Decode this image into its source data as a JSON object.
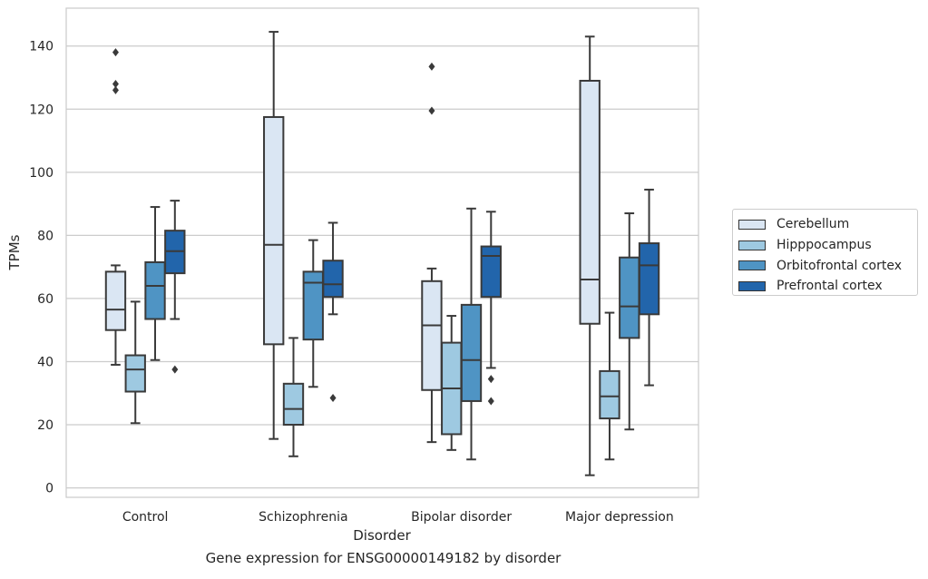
{
  "caption": "Gene expression for ENSG00000149182 by disorder",
  "colors": {
    "Cerebellum": "#dae6f3",
    "Hipppocampus": "#9ec9e1",
    "Orbitofrontal cortex": "#4f94c4",
    "Prefrontal cortex": "#2265ab",
    "line": "#3a3a3a",
    "grid": "#cccccc"
  },
  "chart_data": {
    "type": "box",
    "title": "",
    "xlabel": "Disorder",
    "ylabel": "TPMs",
    "ylim": [
      -3,
      152
    ],
    "yticks": [
      0,
      20,
      40,
      60,
      80,
      100,
      120,
      140
    ],
    "grid": "horizontal",
    "legend_position": "right",
    "categories": [
      "Control",
      "Schizophrenia",
      "Bipolar disorder",
      "Major depression"
    ],
    "series": [
      {
        "name": "Cerebellum",
        "boxes": [
          {
            "whislo": 39,
            "q1": 50,
            "med": 56.5,
            "q3": 68.5,
            "whishi": 70.5,
            "fliers": [
              126,
              128,
              138
            ]
          },
          {
            "whislo": 15.5,
            "q1": 45.5,
            "med": 77,
            "q3": 117.5,
            "whishi": 144.5,
            "fliers": []
          },
          {
            "whislo": 14.5,
            "q1": 31,
            "med": 51.5,
            "q3": 65.5,
            "whishi": 69.5,
            "fliers": [
              119.5,
              133.5
            ]
          },
          {
            "whislo": 4,
            "q1": 52,
            "med": 66,
            "q3": 129,
            "whishi": 143,
            "fliers": []
          }
        ]
      },
      {
        "name": "Hipppocampus",
        "boxes": [
          {
            "whislo": 20.5,
            "q1": 30.5,
            "med": 37.5,
            "q3": 42,
            "whishi": 59,
            "fliers": []
          },
          {
            "whislo": 10,
            "q1": 20,
            "med": 25,
            "q3": 33,
            "whishi": 47.5,
            "fliers": []
          },
          {
            "whislo": 12,
            "q1": 17,
            "med": 31.5,
            "q3": 46,
            "whishi": 54.5,
            "fliers": []
          },
          {
            "whislo": 9,
            "q1": 22,
            "med": 29,
            "q3": 37,
            "whishi": 55.5,
            "fliers": []
          }
        ]
      },
      {
        "name": "Orbitofrontal cortex",
        "boxes": [
          {
            "whislo": 40.5,
            "q1": 53.5,
            "med": 64,
            "q3": 71.5,
            "whishi": 89,
            "fliers": []
          },
          {
            "whislo": 32,
            "q1": 47,
            "med": 65,
            "q3": 68.5,
            "whishi": 78.5,
            "fliers": []
          },
          {
            "whislo": 9,
            "q1": 27.5,
            "med": 40.5,
            "q3": 58,
            "whishi": 88.5,
            "fliers": []
          },
          {
            "whislo": 18.5,
            "q1": 47.5,
            "med": 57.5,
            "q3": 73,
            "whishi": 87,
            "fliers": []
          }
        ]
      },
      {
        "name": "Prefrontal cortex",
        "boxes": [
          {
            "whislo": 53.5,
            "q1": 68,
            "med": 75,
            "q3": 81.5,
            "whishi": 91,
            "fliers": [
              37.5
            ]
          },
          {
            "whislo": 55,
            "q1": 60.5,
            "med": 64.5,
            "q3": 72,
            "whishi": 84,
            "fliers": [
              28.5
            ]
          },
          {
            "whislo": 38,
            "q1": 60.5,
            "med": 73.5,
            "q3": 76.5,
            "whishi": 87.5,
            "fliers": [
              27.5,
              34.5
            ]
          },
          {
            "whislo": 32.5,
            "q1": 55,
            "med": 70.5,
            "q3": 77.5,
            "whishi": 94.5,
            "fliers": []
          }
        ]
      }
    ]
  }
}
